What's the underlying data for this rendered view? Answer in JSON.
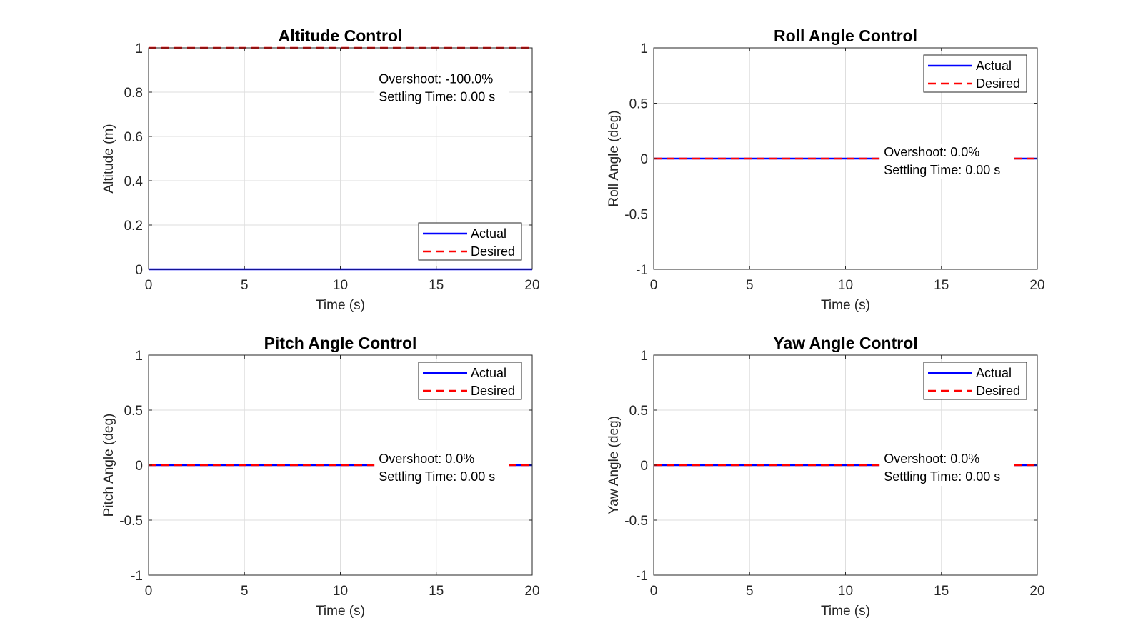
{
  "chart_data": [
    {
      "type": "line",
      "title": "Altitude Control",
      "xlabel": "Time (s)",
      "ylabel": "Altitude (m)",
      "xlim": [
        0,
        20
      ],
      "ylim": [
        0,
        1
      ],
      "xticks": [
        0,
        5,
        10,
        15,
        20
      ],
      "yticks": [
        0,
        0.2,
        0.4,
        0.6,
        0.8,
        1
      ],
      "xtick_labels": [
        "0",
        "5",
        "10",
        "15",
        "20"
      ],
      "ytick_labels": [
        "0",
        "0.2",
        "0.4",
        "0.6",
        "0.8",
        "1"
      ],
      "grid": true,
      "series": [
        {
          "name": "Actual",
          "color": "#0000ff",
          "style": "solid",
          "x": [
            0,
            20
          ],
          "y": [
            0,
            0
          ]
        },
        {
          "name": "Desired",
          "color": "#ff0000",
          "style": "dashed",
          "x": [
            0,
            20
          ],
          "y": [
            1,
            1
          ]
        }
      ],
      "legend_position": "bottom-right",
      "annotation": {
        "overshoot": "Overshoot: -100.0%",
        "settling": "Settling Time: 0.00 s"
      },
      "annotation_anchor": {
        "x": 12,
        "y": 0.83
      }
    },
    {
      "type": "line",
      "title": "Roll Angle Control",
      "xlabel": "Time (s)",
      "ylabel": "Roll Angle (deg)",
      "xlim": [
        0,
        20
      ],
      "ylim": [
        -1,
        1
      ],
      "xticks": [
        0,
        5,
        10,
        15,
        20
      ],
      "yticks": [
        -1,
        -0.5,
        0,
        0.5,
        1
      ],
      "xtick_labels": [
        "0",
        "5",
        "10",
        "15",
        "20"
      ],
      "ytick_labels": [
        "-1",
        "-0.5",
        "0",
        "0.5",
        "1"
      ],
      "grid": true,
      "series": [
        {
          "name": "Actual",
          "color": "#0000ff",
          "style": "solid",
          "x": [
            0,
            20
          ],
          "y": [
            0,
            0
          ]
        },
        {
          "name": "Desired",
          "color": "#ff0000",
          "style": "dashed",
          "x": [
            0,
            20
          ],
          "y": [
            0,
            0
          ]
        }
      ],
      "legend_position": "top-right",
      "annotation": {
        "overshoot": "Overshoot: 0.0%",
        "settling": "Settling Time: 0.00 s"
      },
      "annotation_anchor": {
        "x": 12,
        "y": 0
      }
    },
    {
      "type": "line",
      "title": "Pitch Angle Control",
      "xlabel": "Time (s)",
      "ylabel": "Pitch Angle (deg)",
      "xlim": [
        0,
        20
      ],
      "ylim": [
        -1,
        1
      ],
      "xticks": [
        0,
        5,
        10,
        15,
        20
      ],
      "yticks": [
        -1,
        -0.5,
        0,
        0.5,
        1
      ],
      "xtick_labels": [
        "0",
        "5",
        "10",
        "15",
        "20"
      ],
      "ytick_labels": [
        "-1",
        "-0.5",
        "0",
        "0.5",
        "1"
      ],
      "grid": true,
      "series": [
        {
          "name": "Actual",
          "color": "#0000ff",
          "style": "solid",
          "x": [
            0,
            20
          ],
          "y": [
            0,
            0
          ]
        },
        {
          "name": "Desired",
          "color": "#ff0000",
          "style": "dashed",
          "x": [
            0,
            20
          ],
          "y": [
            0,
            0
          ]
        }
      ],
      "legend_position": "top-right",
      "annotation": {
        "overshoot": "Overshoot: 0.0%",
        "settling": "Settling Time: 0.00 s"
      },
      "annotation_anchor": {
        "x": 12,
        "y": 0
      }
    },
    {
      "type": "line",
      "title": "Yaw Angle Control",
      "xlabel": "Time (s)",
      "ylabel": "Yaw Angle (deg)",
      "xlim": [
        0,
        20
      ],
      "ylim": [
        -1,
        1
      ],
      "xticks": [
        0,
        5,
        10,
        15,
        20
      ],
      "yticks": [
        -1,
        -0.5,
        0,
        0.5,
        1
      ],
      "xtick_labels": [
        "0",
        "5",
        "10",
        "15",
        "20"
      ],
      "ytick_labels": [
        "-1",
        "-0.5",
        "0",
        "0.5",
        "1"
      ],
      "grid": true,
      "series": [
        {
          "name": "Actual",
          "color": "#0000ff",
          "style": "solid",
          "x": [
            0,
            20
          ],
          "y": [
            0,
            0
          ]
        },
        {
          "name": "Desired",
          "color": "#ff0000",
          "style": "dashed",
          "x": [
            0,
            20
          ],
          "y": [
            0,
            0
          ]
        }
      ],
      "legend_position": "top-right",
      "annotation": {
        "overshoot": "Overshoot: 0.0%",
        "settling": "Settling Time: 0.00 s"
      },
      "annotation_anchor": {
        "x": 12,
        "y": 0
      }
    }
  ]
}
